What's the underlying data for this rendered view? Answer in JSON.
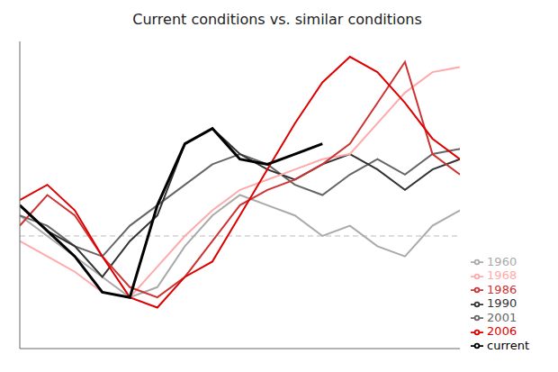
{
  "chart_data": {
    "type": "line",
    "title": "Current conditions vs. similar conditions",
    "x": [
      0,
      1,
      2,
      3,
      4,
      5,
      6,
      7,
      8,
      9,
      10,
      11,
      12,
      13,
      14,
      15,
      16
    ],
    "series": [
      {
        "name": "1960",
        "color": "#aaaaaa",
        "values": [
          0.3,
          0.1,
          -0.1,
          -0.3,
          -0.5,
          -0.4,
          0.0,
          0.3,
          0.5,
          0.4,
          0.3,
          0.1,
          0.2,
          0.0,
          -0.1,
          0.2,
          0.35
        ]
      },
      {
        "name": "2001",
        "color": "#666666",
        "values": [
          0.3,
          0.2,
          0.0,
          -0.1,
          0.2,
          0.4,
          0.6,
          0.8,
          0.9,
          0.8,
          0.6,
          0.5,
          0.7,
          0.85,
          0.7,
          0.9,
          0.95
        ]
      },
      {
        "name": "1990",
        "color": "#333333",
        "values": [
          0.4,
          0.15,
          0.0,
          -0.3,
          0.05,
          0.3,
          1.0,
          1.15,
          0.9,
          0.75,
          0.65,
          0.8,
          0.9,
          0.75,
          0.55,
          0.75,
          0.85
        ]
      },
      {
        "name": "1968",
        "color": "#ffaaaa",
        "values": [
          0.05,
          -0.1,
          -0.25,
          -0.45,
          -0.5,
          -0.2,
          0.1,
          0.35,
          0.55,
          0.65,
          0.75,
          0.85,
          0.9,
          1.2,
          1.5,
          1.7,
          1.75
        ]
      },
      {
        "name": "1986",
        "color": "#cc3333",
        "values": [
          0.2,
          0.5,
          0.3,
          -0.1,
          -0.4,
          -0.5,
          -0.3,
          0.05,
          0.4,
          0.55,
          0.65,
          0.8,
          1.0,
          1.4,
          1.8,
          0.9,
          0.7
        ]
      },
      {
        "name": "2006",
        "color": "#dd0000",
        "values": [
          0.45,
          0.6,
          0.35,
          -0.1,
          -0.5,
          -0.6,
          -0.3,
          -0.15,
          0.3,
          0.75,
          1.2,
          1.6,
          1.85,
          1.7,
          1.4,
          1.05,
          0.85
        ]
      },
      {
        "name": "current",
        "color": "#000000",
        "values": [
          0.4,
          0.15,
          -0.1,
          -0.45,
          -0.5,
          0.4,
          1.0,
          1.15,
          0.85,
          0.8,
          0.9,
          1.0,
          null,
          null,
          null,
          null,
          null
        ]
      }
    ],
    "reference_lines": [
      {
        "y": 0.1,
        "color": "#bbbbbb",
        "line_style": "dashed"
      }
    ],
    "xlim": [
      0,
      16
    ],
    "ylim": [
      -1,
      2
    ],
    "tick_labels": false,
    "grid": false,
    "legend": "lower right"
  }
}
